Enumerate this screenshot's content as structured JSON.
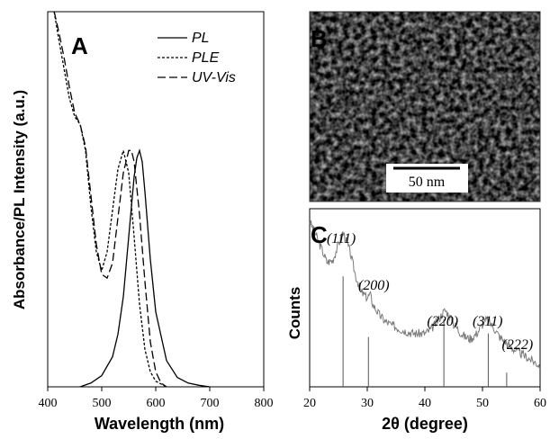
{
  "panels": {
    "a": {
      "letter": "A"
    },
    "b": {
      "letter": "B",
      "scale_bar": "50 nm"
    },
    "c": {
      "letter": "C"
    }
  },
  "chart_data": [
    {
      "panel": "A",
      "type": "line",
      "title": "",
      "xlabel": "Wavelength (nm)",
      "ylabel": "Absorbance/PL Intensity (a.u.)",
      "xlim": [
        400,
        800
      ],
      "ylim": [
        0,
        1.0
      ],
      "x_ticks": [
        400,
        500,
        600,
        700,
        800
      ],
      "legend": {
        "placement": "top-right",
        "entries": [
          "PL",
          "PLE",
          "UV-Vis"
        ]
      },
      "series": [
        {
          "name": "PL",
          "style": "solid",
          "x": [
            460,
            480,
            500,
            520,
            530,
            540,
            550,
            560,
            565,
            570,
            575,
            580,
            590,
            600,
            620,
            640,
            660,
            680,
            700
          ],
          "y": [
            0.0,
            0.01,
            0.03,
            0.08,
            0.14,
            0.24,
            0.4,
            0.56,
            0.61,
            0.63,
            0.6,
            0.52,
            0.34,
            0.2,
            0.07,
            0.025,
            0.01,
            0.004,
            0.0
          ]
        },
        {
          "name": "PLE",
          "style": "dotted",
          "x": [
            412,
            420,
            430,
            440,
            450,
            460,
            470,
            480,
            490,
            500,
            510,
            520,
            530,
            540,
            550,
            560,
            570,
            580,
            590,
            600,
            620
          ],
          "y": [
            1.0,
            0.93,
            0.85,
            0.77,
            0.72,
            0.7,
            0.63,
            0.48,
            0.36,
            0.31,
            0.36,
            0.47,
            0.58,
            0.63,
            0.57,
            0.4,
            0.22,
            0.1,
            0.04,
            0.015,
            0.0
          ]
        },
        {
          "name": "UV-Vis",
          "style": "dashed",
          "x": [
            412,
            420,
            430,
            440,
            450,
            460,
            470,
            480,
            490,
            500,
            510,
            520,
            530,
            540,
            550,
            555,
            560,
            570,
            580,
            590,
            600,
            610,
            620
          ],
          "y": [
            1.0,
            0.95,
            0.88,
            0.8,
            0.73,
            0.7,
            0.64,
            0.51,
            0.38,
            0.3,
            0.29,
            0.33,
            0.45,
            0.57,
            0.63,
            0.63,
            0.6,
            0.46,
            0.28,
            0.12,
            0.04,
            0.01,
            0.0
          ]
        }
      ]
    },
    {
      "panel": "C",
      "type": "line",
      "title": "",
      "xlabel": "2θ (degree)",
      "ylabel": "Counts",
      "xlim": [
        20,
        60
      ],
      "ylim": [
        0,
        1.0
      ],
      "x_ticks": [
        20,
        30,
        40,
        50,
        60
      ],
      "peak_labels": [
        {
          "text": "(111)",
          "x": 25.8
        },
        {
          "text": "(200)",
          "x": 30.2
        },
        {
          "text": "(220)",
          "x": 43.4
        },
        {
          "text": "(311)",
          "x": 50.9
        },
        {
          "text": "(222)",
          "x": 54.2
        }
      ],
      "reference_lines": [
        {
          "x": 25.8,
          "height": 0.62
        },
        {
          "x": 30.2,
          "height": 0.28
        },
        {
          "x": 43.3,
          "height": 0.38
        },
        {
          "x": 51.0,
          "height": 0.3
        },
        {
          "x": 54.2,
          "height": 0.08
        }
      ],
      "series": [
        {
          "name": "",
          "style": "noisy",
          "x": [
            20,
            21,
            22,
            23,
            24,
            25,
            25.8,
            27,
            28,
            29,
            30,
            30.5,
            31,
            32,
            33,
            34,
            36,
            38,
            40,
            41,
            42,
            43,
            43.5,
            44,
            45,
            46,
            47,
            48,
            49,
            50,
            50.8,
            52,
            53,
            54,
            55,
            56,
            57,
            58,
            59,
            60
          ],
          "y": [
            0.93,
            0.86,
            0.78,
            0.7,
            0.71,
            0.8,
            0.87,
            0.76,
            0.62,
            0.53,
            0.5,
            0.52,
            0.46,
            0.41,
            0.37,
            0.35,
            0.32,
            0.3,
            0.3,
            0.32,
            0.36,
            0.41,
            0.43,
            0.41,
            0.36,
            0.31,
            0.28,
            0.27,
            0.3,
            0.35,
            0.38,
            0.33,
            0.28,
            0.25,
            0.22,
            0.2,
            0.18,
            0.16,
            0.14,
            0.12
          ]
        }
      ]
    }
  ]
}
